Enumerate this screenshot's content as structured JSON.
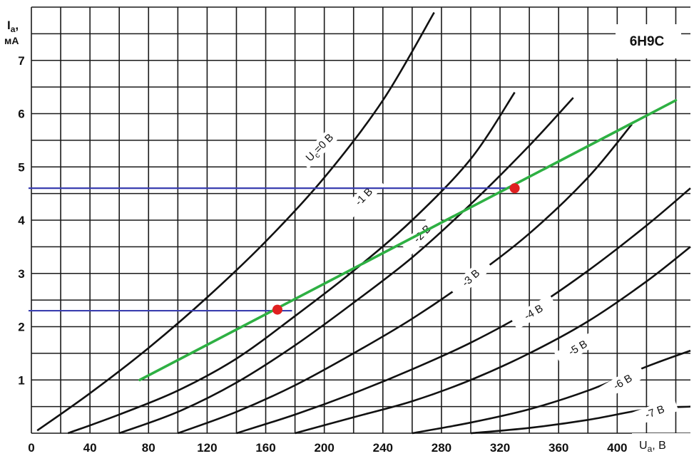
{
  "chart_data": {
    "type": "line",
    "title": "6Н9С",
    "xlabel": "U",
    "xlabel_sub": "a",
    "xlabel_unit": ", В",
    "ylabel": "I",
    "ylabel_sub": "a",
    "ylabel_unit": "мА",
    "xlim": [
      0,
      450
    ],
    "ylim": [
      0,
      8
    ],
    "x_ticks": [
      0,
      40,
      80,
      120,
      160,
      200,
      240,
      280,
      320,
      360,
      400
    ],
    "y_ticks": [
      1,
      2,
      3,
      4,
      5,
      6,
      7
    ],
    "x_tick_labels": [
      "0",
      "40",
      "80",
      "120",
      "160",
      "200",
      "240",
      "280",
      "320",
      "360",
      "400"
    ],
    "y_tick_labels": [
      "1",
      "2",
      "3",
      "4",
      "5",
      "6",
      "7"
    ],
    "grid": true,
    "grid_step_x": 20,
    "grid_step_y": 0.5,
    "series": [
      {
        "name": "U_c=0 B",
        "label": "U",
        "label_sub": "c",
        "label_rest": "=0 B",
        "x": [
          4,
          40,
          80,
          120,
          160,
          200,
          240,
          275
        ],
        "y": [
          0.05,
          0.75,
          1.6,
          2.55,
          3.6,
          4.8,
          6.25,
          7.9
        ]
      },
      {
        "name": "-1 B",
        "label": "-1 B",
        "x": [
          25,
          60,
          100,
          140,
          180,
          220,
          260,
          300,
          330
        ],
        "y": [
          0.0,
          0.35,
          0.8,
          1.4,
          2.2,
          3.05,
          4.0,
          5.15,
          6.4
        ]
      },
      {
        "name": "-2 B",
        "label": "-2 B",
        "x": [
          60,
          100,
          140,
          180,
          220,
          260,
          300,
          340,
          370
        ],
        "y": [
          0.0,
          0.4,
          0.95,
          1.65,
          2.45,
          3.3,
          4.3,
          5.4,
          6.3
        ]
      },
      {
        "name": "-3 B",
        "label": "-3 B",
        "x": [
          100,
          140,
          180,
          220,
          260,
          300,
          340,
          380,
          410
        ],
        "y": [
          0.0,
          0.4,
          0.9,
          1.5,
          2.15,
          2.9,
          3.75,
          4.8,
          5.8
        ]
      },
      {
        "name": "-4 B",
        "label": "-4 B",
        "x": [
          140,
          180,
          220,
          260,
          300,
          340,
          380,
          420,
          450
        ],
        "y": [
          0.0,
          0.35,
          0.75,
          1.2,
          1.7,
          2.3,
          3.05,
          3.9,
          4.6
        ]
      },
      {
        "name": "-5 B",
        "label": "-5 B",
        "x": [
          180,
          220,
          260,
          300,
          340,
          380,
          420,
          450
        ],
        "y": [
          0.0,
          0.3,
          0.6,
          1.0,
          1.5,
          2.1,
          2.85,
          3.5
        ]
      },
      {
        "name": "-6 B",
        "label": "-6 B",
        "x": [
          260,
          300,
          340,
          380,
          420,
          450
        ],
        "y": [
          0.0,
          0.2,
          0.45,
          0.8,
          1.25,
          1.55
        ]
      },
      {
        "name": "-7 B",
        "label": "-7 B",
        "x": [
          300,
          340,
          380,
          420,
          450
        ],
        "y": [
          0.0,
          0.1,
          0.25,
          0.45,
          0.5
        ]
      }
    ],
    "load_line": {
      "x": [
        74,
        440
      ],
      "y": [
        1.0,
        6.25
      ],
      "color": "#2eb043"
    },
    "reference_lines": [
      {
        "y": 4.6,
        "x_end": 330,
        "color": "#3a3fb0"
      },
      {
        "y": 2.3,
        "x_end": 178,
        "color": "#3a3fb0"
      }
    ],
    "points": [
      {
        "x": 168,
        "y": 2.32,
        "color": "#e02020"
      },
      {
        "x": 330,
        "y": 4.6,
        "color": "#e02020"
      }
    ]
  }
}
